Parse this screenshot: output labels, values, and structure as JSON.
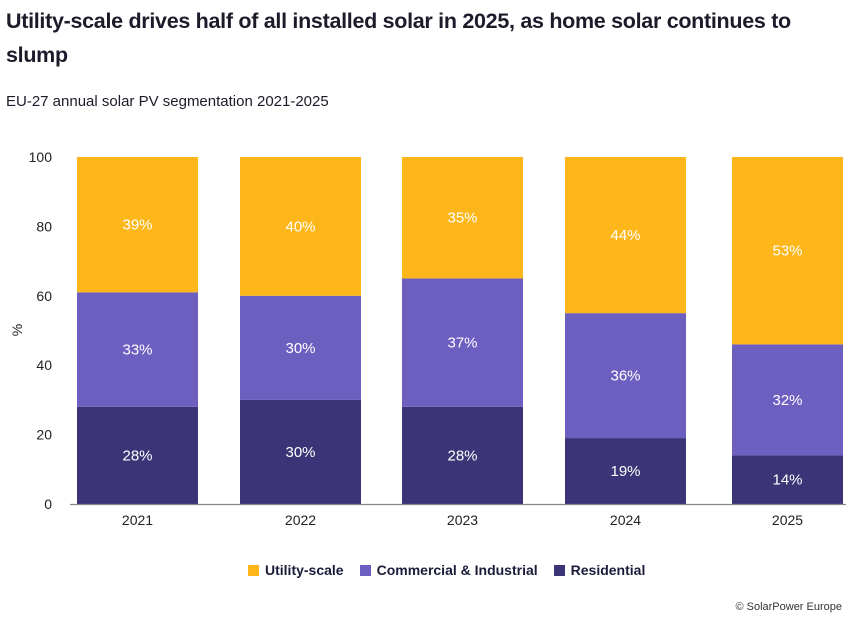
{
  "chart_data": {
    "type": "bar",
    "stacked": true,
    "title": "Utility-scale drives half of all installed solar in 2025, as home solar continues to slump",
    "subtitle": "EU-27 annual solar PV segmentation 2021-2025",
    "xlabel": "",
    "ylabel": "%",
    "ylim": [
      0,
      100
    ],
    "yticks": [
      0,
      20,
      40,
      60,
      80,
      100
    ],
    "ytick_labels": [
      "0",
      "20",
      "40",
      "60",
      "80",
      "100"
    ],
    "grid": false,
    "categories": [
      "2021",
      "2022",
      "2023",
      "2024",
      "2025"
    ],
    "series": [
      {
        "name": "Residential",
        "color": "#3b3577",
        "values": [
          28,
          30,
          28,
          19,
          14
        ],
        "labels": [
          "28%",
          "30%",
          "28%",
          "19%",
          "14%"
        ]
      },
      {
        "name": "Commercial & Industrial",
        "color": "#6c5fc0",
        "values": [
          33,
          30,
          37,
          36,
          32
        ],
        "labels": [
          "33%",
          "30%",
          "37%",
          "36%",
          "32%"
        ]
      },
      {
        "name": "Utility-scale",
        "color": "#fdb71b",
        "values": [
          39,
          40,
          35,
          44,
          53
        ],
        "labels": [
          "39%",
          "40%",
          "35%",
          "44%",
          "53%"
        ]
      }
    ],
    "legend": {
      "placement": "bottom-center",
      "entries": [
        {
          "label": "Utility-scale",
          "color": "#fdb71b"
        },
        {
          "label": "Commercial & Industrial",
          "color": "#6c5fc0"
        },
        {
          "label": "Residential",
          "color": "#3b3577"
        }
      ]
    },
    "source": "© SolarPower Europe"
  }
}
